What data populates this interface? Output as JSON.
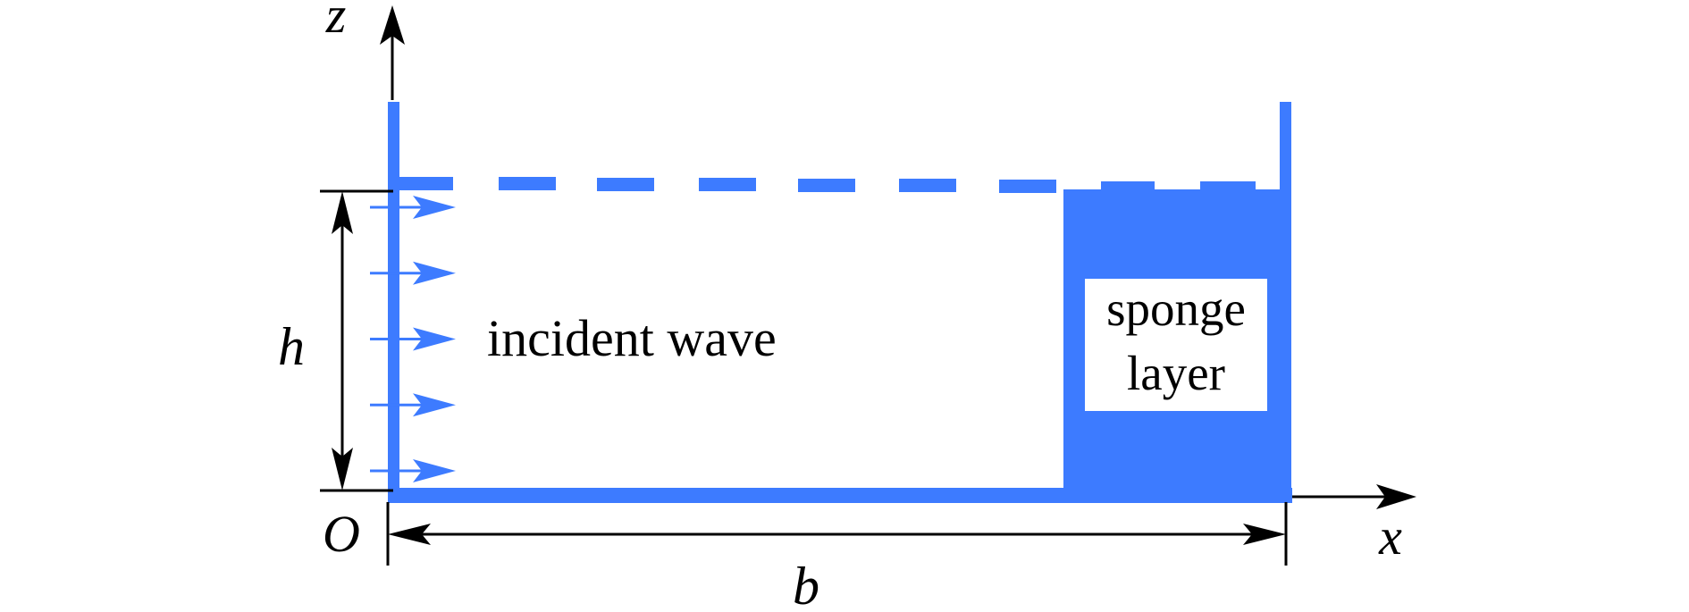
{
  "labels": {
    "z_axis": "z",
    "x_axis": "x",
    "origin": "O",
    "height": "h",
    "width": "b",
    "incident_wave": "incident wave",
    "sponge_line1": "sponge",
    "sponge_line2": "layer"
  },
  "colors": {
    "tank": "#3d7bff",
    "ink": "#000000",
    "background": "#ffffff"
  },
  "incident_arrow_count": 5
}
